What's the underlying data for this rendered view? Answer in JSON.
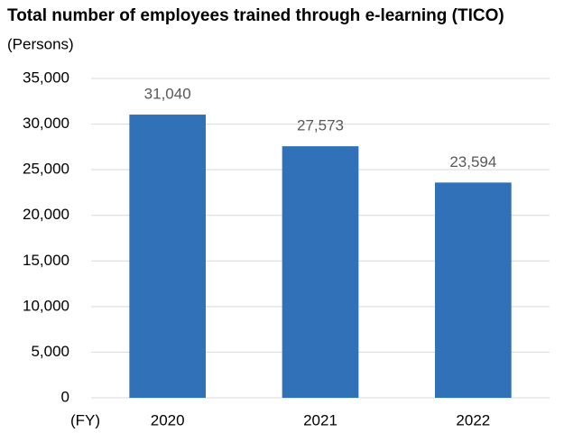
{
  "chart_data": {
    "type": "bar",
    "title": "Total number of employees trained through e-learning (TICO)",
    "y_axis_label": "(Persons)",
    "x_axis_label": "(FY)",
    "categories": [
      "2020",
      "2021",
      "2022"
    ],
    "values": [
      31040,
      27573,
      23594
    ],
    "value_labels": [
      "31,040",
      "27,573",
      "23,594"
    ],
    "color": "#3071b8",
    "ylim": [
      0,
      35000
    ],
    "yticks": [
      0,
      {
        "value": 5000,
        "label": "5,000"
      },
      {
        "value": 10000,
        "label": "10,000"
      },
      {
        "value": 15000,
        "label": "15,000"
      },
      {
        "value": 20000,
        "label": "20,000"
      },
      {
        "value": 25000,
        "label": "25,000"
      },
      {
        "value": 30000,
        "label": "30,000"
      },
      {
        "value": 35000,
        "label": "35,000"
      }
    ],
    "grid": true
  }
}
